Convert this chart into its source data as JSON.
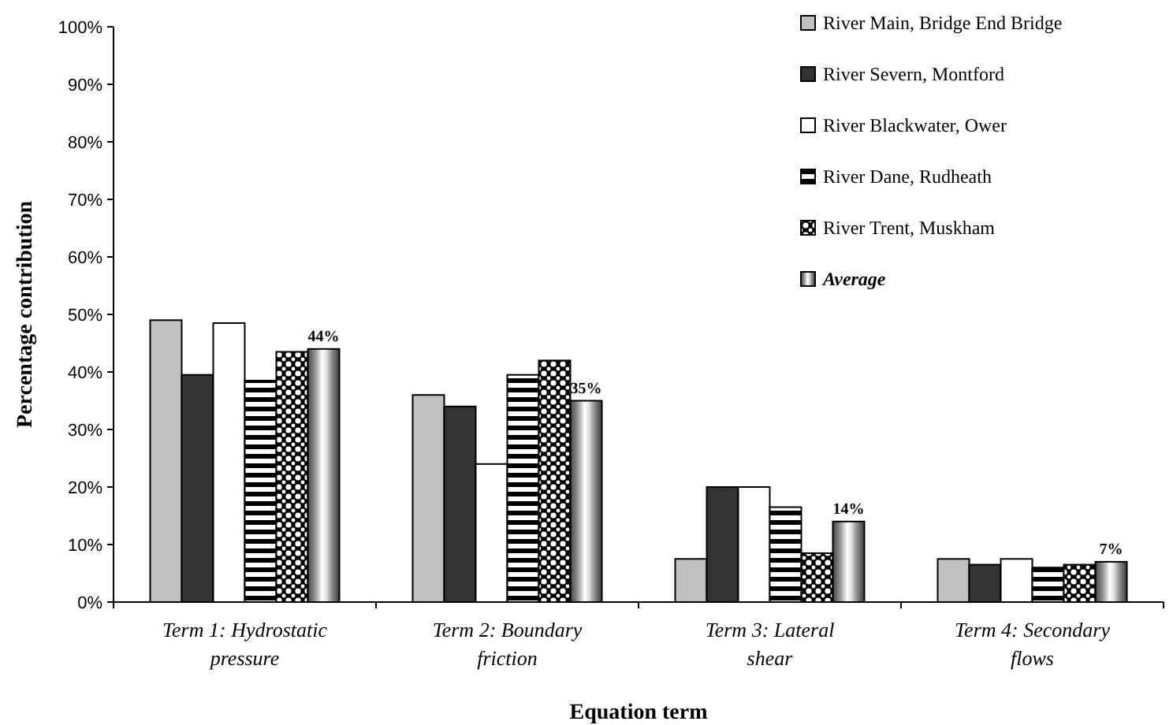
{
  "chart_data": {
    "type": "bar",
    "xlabel": "Equation term",
    "ylabel": "Percentage contribution",
    "categories": [
      "Term 1: Hydrostatic pressure",
      "Term 2: Boundary friction",
      "Term 3: Lateral shear",
      "Term 4: Secondary flows"
    ],
    "series": [
      {
        "name": "River Main, Bridge End Bridge",
        "color": "#c0c0c0",
        "values": [
          49,
          36,
          7.5,
          7.5
        ]
      },
      {
        "name": "River Severn, Montford",
        "color": "#333333",
        "values": [
          39.5,
          34,
          20,
          6.5
        ]
      },
      {
        "name": "River Blackwater, Ower",
        "color": "#ffffff",
        "values": [
          48.5,
          24,
          20,
          7.5
        ]
      },
      {
        "name": "River Dane, Rudheath",
        "color": "#000000",
        "values": [
          38.5,
          39.5,
          16.5,
          6
        ]
      },
      {
        "name": "River Trent, Muskham",
        "color": "#000000",
        "values": [
          43.5,
          42,
          8.5,
          6.5
        ]
      },
      {
        "name": "Average",
        "color": "#000000",
        "values": [
          44,
          35,
          14,
          7
        ],
        "value_labels": [
          "44%",
          "35%",
          "14%",
          "7%"
        ]
      }
    ],
    "ylim": [
      0,
      100
    ],
    "yticks": [
      {
        "value": 0,
        "label": "0%"
      },
      {
        "value": 10,
        "label": "10%"
      },
      {
        "value": 20,
        "label": "20%"
      },
      {
        "value": 30,
        "label": "30%"
      },
      {
        "value": 40,
        "label": "40%"
      },
      {
        "value": 50,
        "label": "50%"
      },
      {
        "value": 60,
        "label": "60%"
      },
      {
        "value": 70,
        "label": "70%"
      },
      {
        "value": 80,
        "label": "80%"
      },
      {
        "value": 90,
        "label": "90%"
      },
      {
        "value": 100,
        "label": "100%"
      }
    ],
    "grid": false,
    "legend": "top right"
  }
}
